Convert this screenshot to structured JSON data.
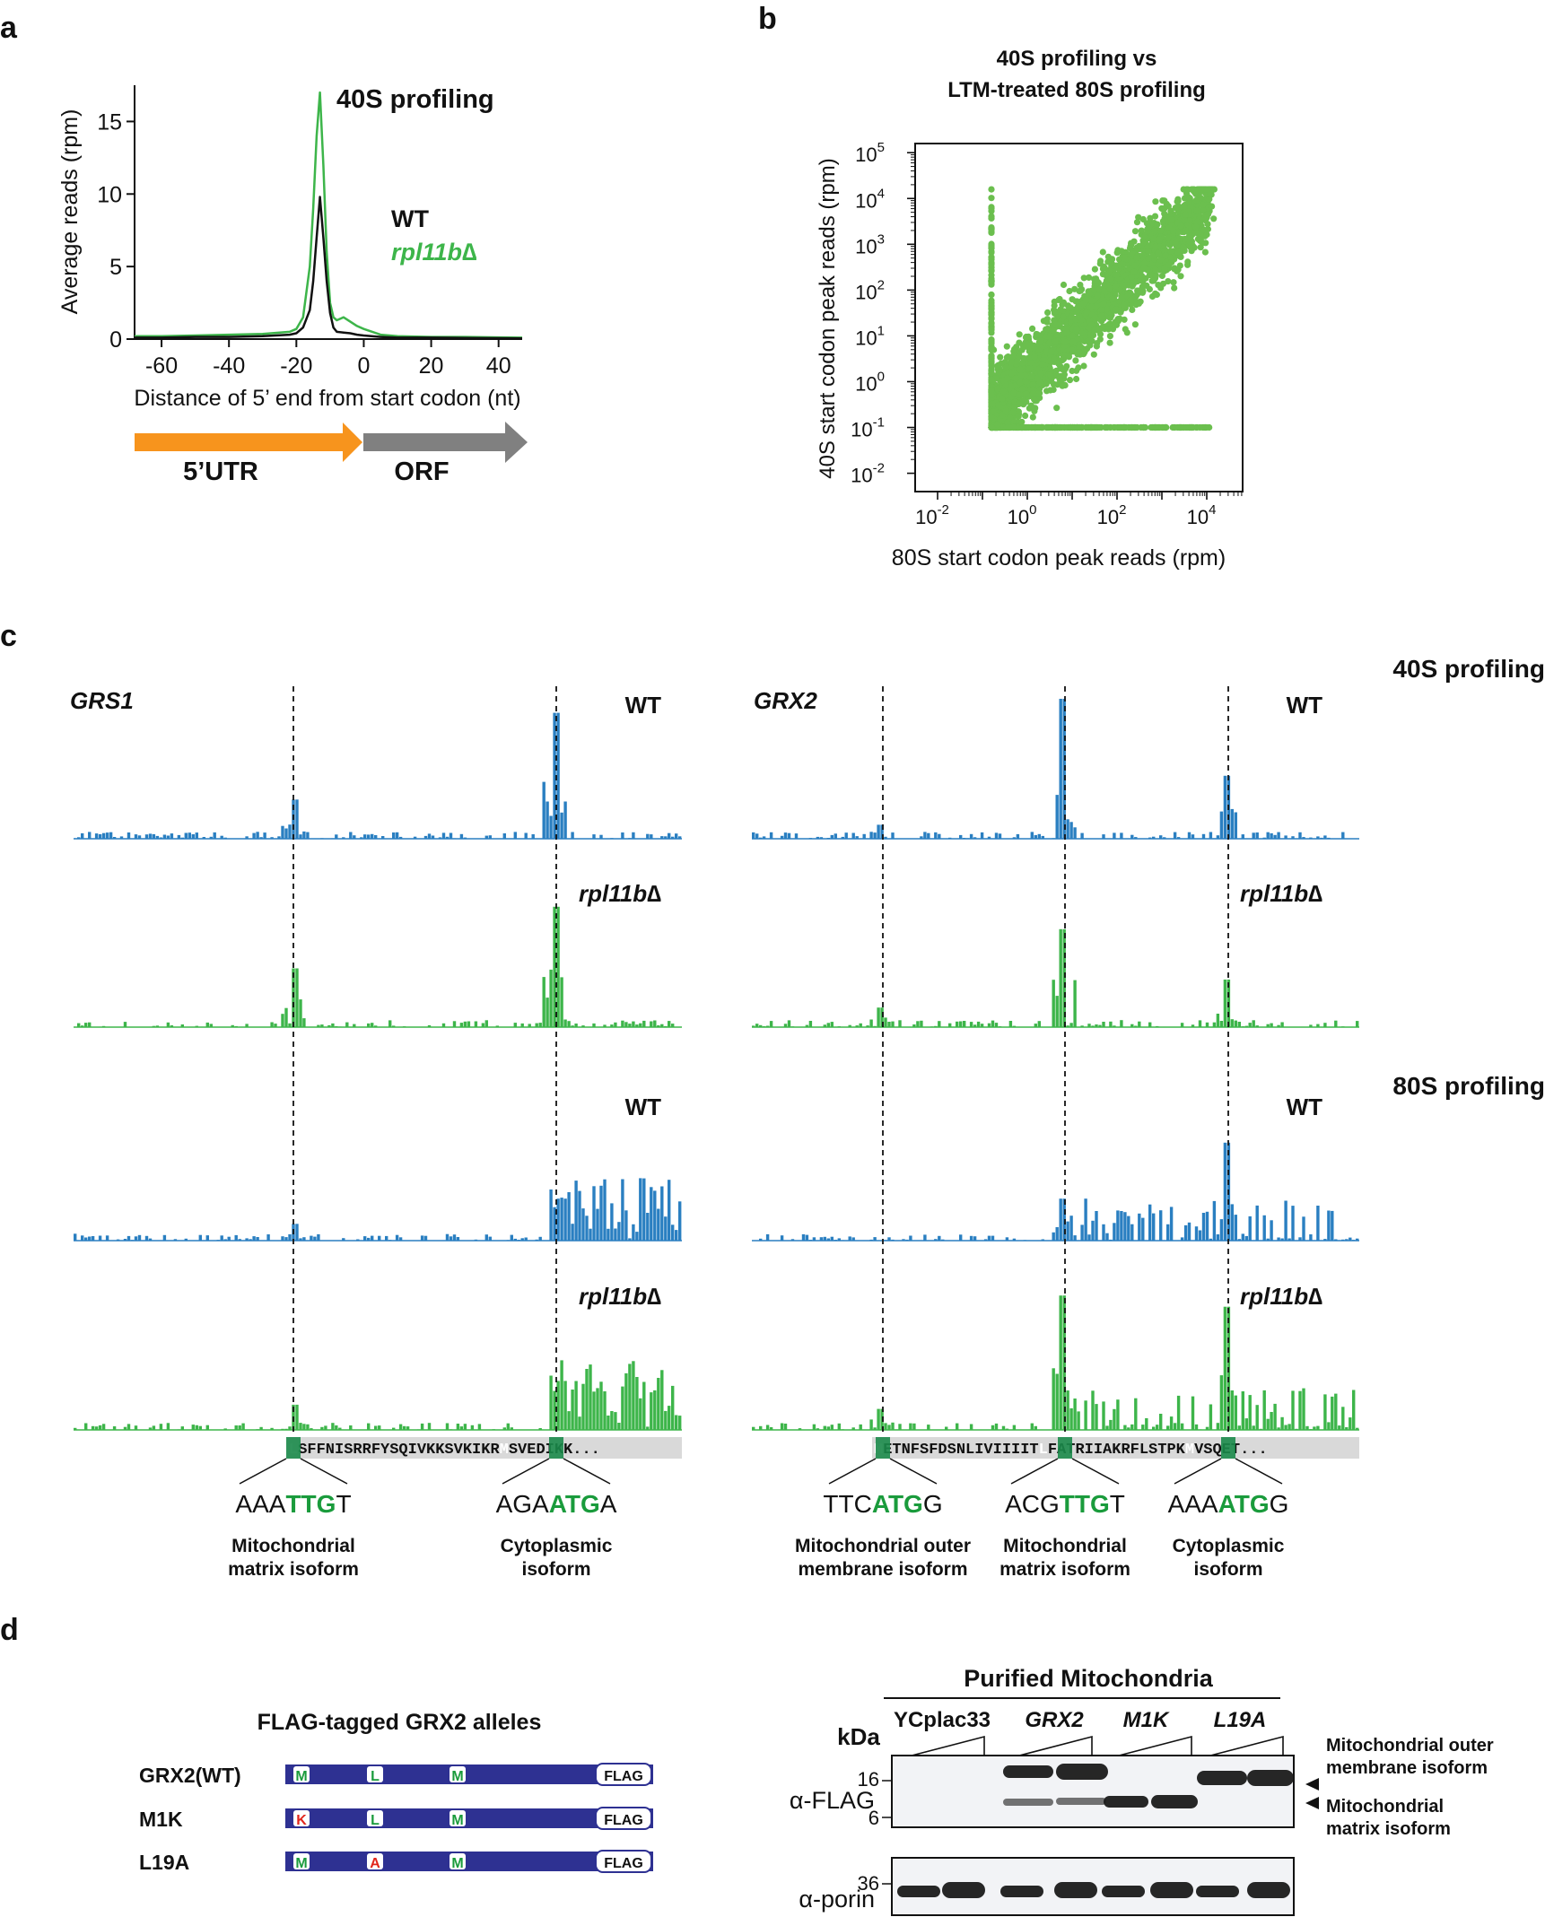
{
  "colors": {
    "wt": "#2a7fc1",
    "mutant": "#3db54a",
    "scatter": "#6bbf4e",
    "utr_arrow": "#f7941d",
    "orf_arrow": "#808080",
    "codon_green": "#1a9b3c",
    "seq_bg": "#d9d9d9",
    "seq_highlight": "#1b8a4a",
    "domain_bar": "#2e3192",
    "mut_red": "#e1251b",
    "blot_band": "#1a1a1a",
    "blot_bg": "#f2f3f6"
  },
  "panels": {
    "a": "a",
    "b": "b",
    "c": "c",
    "d": "d"
  },
  "chart_data": [
    {
      "id": "a",
      "type": "line",
      "title": "40S profiling",
      "xlabel": "Distance of 5’ end from start codon (nt)",
      "ylabel": "Average reads (rpm)",
      "xlim": [
        -68,
        47
      ],
      "ylim": [
        0,
        17.5
      ],
      "xticks": [
        -60,
        -40,
        -20,
        0,
        20,
        40
      ],
      "yticks": [
        0,
        5,
        10,
        15
      ],
      "legend": [
        "WT",
        "rpl11b∆"
      ],
      "series": [
        {
          "name": "WT",
          "x": [
            -68,
            -60,
            -50,
            -40,
            -30,
            -22,
            -20,
            -18,
            -16,
            -15,
            -14,
            -13,
            -12,
            -11,
            -10,
            -9,
            -8,
            -6,
            -4,
            -2,
            0,
            5,
            10,
            20,
            30,
            40,
            47
          ],
          "y": [
            0.1,
            0.1,
            0.15,
            0.15,
            0.2,
            0.3,
            0.4,
            0.8,
            2,
            4,
            7,
            9.8,
            7,
            4,
            1.8,
            0.8,
            0.5,
            0.45,
            0.4,
            0.3,
            0.25,
            0.15,
            0.1,
            0.1,
            0.08,
            0.06,
            0.05
          ]
        },
        {
          "name": "rpl11b∆",
          "x": [
            -68,
            -60,
            -50,
            -40,
            -30,
            -22,
            -20,
            -18,
            -16,
            -15,
            -14,
            -13,
            -12,
            -11,
            -10,
            -9,
            -8,
            -6,
            -4,
            -2,
            0,
            5,
            10,
            20,
            30,
            40,
            47
          ],
          "y": [
            0.2,
            0.2,
            0.25,
            0.3,
            0.35,
            0.5,
            0.7,
            1.5,
            5,
            9,
            14,
            17,
            12,
            6,
            2.5,
            1.5,
            1.3,
            1.5,
            1.2,
            0.9,
            0.7,
            0.3,
            0.2,
            0.15,
            0.15,
            0.12,
            0.1
          ]
        }
      ],
      "annotations": {
        "left_arrow": "5’UTR",
        "right_arrow": "ORF"
      }
    },
    {
      "id": "b",
      "type": "scatter",
      "title": [
        "40S profiling vs",
        "LTM-treated 80S profiling"
      ],
      "xlabel": "80S start codon peak reads (rpm)",
      "ylabel": "40S start codon peak reads (rpm)",
      "xscale": "log10",
      "yscale": "log10",
      "xlim_exp": [
        -2.5,
        4.8
      ],
      "ylim_exp": [
        -2.4,
        5.2
      ],
      "xticks": [
        {
          "base": "10",
          "exp": "-2"
        },
        {
          "base": "10",
          "exp": "0"
        },
        {
          "base": "10",
          "exp": "2"
        },
        {
          "base": "10",
          "exp": "4"
        }
      ],
      "yticks": [
        {
          "base": "10",
          "exp": "-2"
        },
        {
          "base": "10",
          "exp": "-1"
        },
        {
          "base": "10",
          "exp": "0"
        },
        {
          "base": "10",
          "exp": "1"
        },
        {
          "base": "10",
          "exp": "2"
        },
        {
          "base": "10",
          "exp": "3"
        },
        {
          "base": "10",
          "exp": "4"
        },
        {
          "base": "10",
          "exp": "5"
        }
      ],
      "description_of_cloud": "approx. 6000 genes, positively correlated along the diagonal; floor at 40S = 10^-1, left edge at 80S ≈ 10^-0.8",
      "range_log10": {
        "x": [
          -0.8,
          4.2
        ],
        "y": [
          -1,
          4.2
        ]
      }
    },
    {
      "id": "c",
      "type": "bar",
      "title_top": "40S profiling",
      "title_bottom": "80S profiling",
      "genes": [
        {
          "name": "GRS1",
          "tracks": [
            {
              "label": "WT",
              "assay": "40S",
              "series": "WT"
            },
            {
              "label": "rpl11b∆",
              "assay": "40S",
              "series": "rpl11b∆"
            },
            {
              "label": "WT",
              "assay": "80S",
              "series": "WT"
            },
            {
              "label": "rpl11b∆",
              "assay": "80S",
              "series": "rpl11b∆"
            }
          ],
          "start_sites": [
            {
              "residue": "L",
              "context": [
                "AAA",
                "TTG",
                "T"
              ],
              "isoform": [
                "Mitochondrial",
                "matrix isoform"
              ]
            },
            {
              "residue": "M",
              "context": [
                "AGA",
                "ATG",
                "A"
              ],
              "isoform": [
                "Cytoplasmic",
                "isoform"
              ]
            }
          ],
          "sequence": [
            "L",
            "SFFNISRRFYSQIVKKSVKIKR",
            "M",
            "SVEDIKK..."
          ]
        },
        {
          "name": "GRX2",
          "tracks": [
            {
              "label": "WT",
              "assay": "40S",
              "series": "WT"
            },
            {
              "label": "rpl11b∆",
              "assay": "40S",
              "series": "rpl11b∆"
            },
            {
              "label": "WT",
              "assay": "80S",
              "series": "WT"
            },
            {
              "label": "rpl11b∆",
              "assay": "80S",
              "series": "rpl11b∆"
            }
          ],
          "start_sites": [
            {
              "residue": "M",
              "context": [
                "TTC",
                "ATG",
                "G"
              ],
              "isoform": [
                "Mitochondrial outer",
                "membrane isoform"
              ]
            },
            {
              "residue": "L",
              "context": [
                "ACG",
                "TTG",
                "T"
              ],
              "isoform": [
                "Mitochondrial",
                "matrix isoform"
              ]
            },
            {
              "residue": "M",
              "context": [
                "AAA",
                "ATG",
                "G"
              ],
              "isoform": [
                "Cytoplasmic",
                "isoform"
              ]
            }
          ],
          "sequence": [
            "M",
            "ETNFSFDSNLIVIIIIT",
            "L",
            "FATRIIAKRFLSTPK",
            "M",
            "VSQET..."
          ]
        }
      ]
    }
  ],
  "panel_d": {
    "alleles_title": "FLAG-tagged GRX2 alleles",
    "alleles": [
      {
        "name": "GRX2(WT)",
        "sites": [
          "M",
          "L",
          "M"
        ],
        "mutated": [
          false,
          false,
          false
        ],
        "tag": "FLAG"
      },
      {
        "name": "M1K",
        "sites": [
          "K",
          "L",
          "M"
        ],
        "mutated": [
          true,
          false,
          false
        ],
        "tag": "FLAG"
      },
      {
        "name": "L19A",
        "sites": [
          "M",
          "A",
          "M"
        ],
        "mutated": [
          false,
          true,
          false
        ],
        "tag": "FLAG"
      }
    ],
    "blot": {
      "header": "Purified Mitochondria",
      "lanes": [
        "YCplac33",
        "GRX2",
        "M1K",
        "L19A"
      ],
      "kda_label": "kDa",
      "markers_flag": [
        "16",
        "6"
      ],
      "marker_porin": "36",
      "rows": [
        "α-FLAG",
        "α-porin"
      ],
      "band_labels": [
        [
          "Mitochondrial outer",
          "membrane isoform"
        ],
        [
          "Mitochondrial",
          "matrix isoform"
        ]
      ]
    }
  }
}
